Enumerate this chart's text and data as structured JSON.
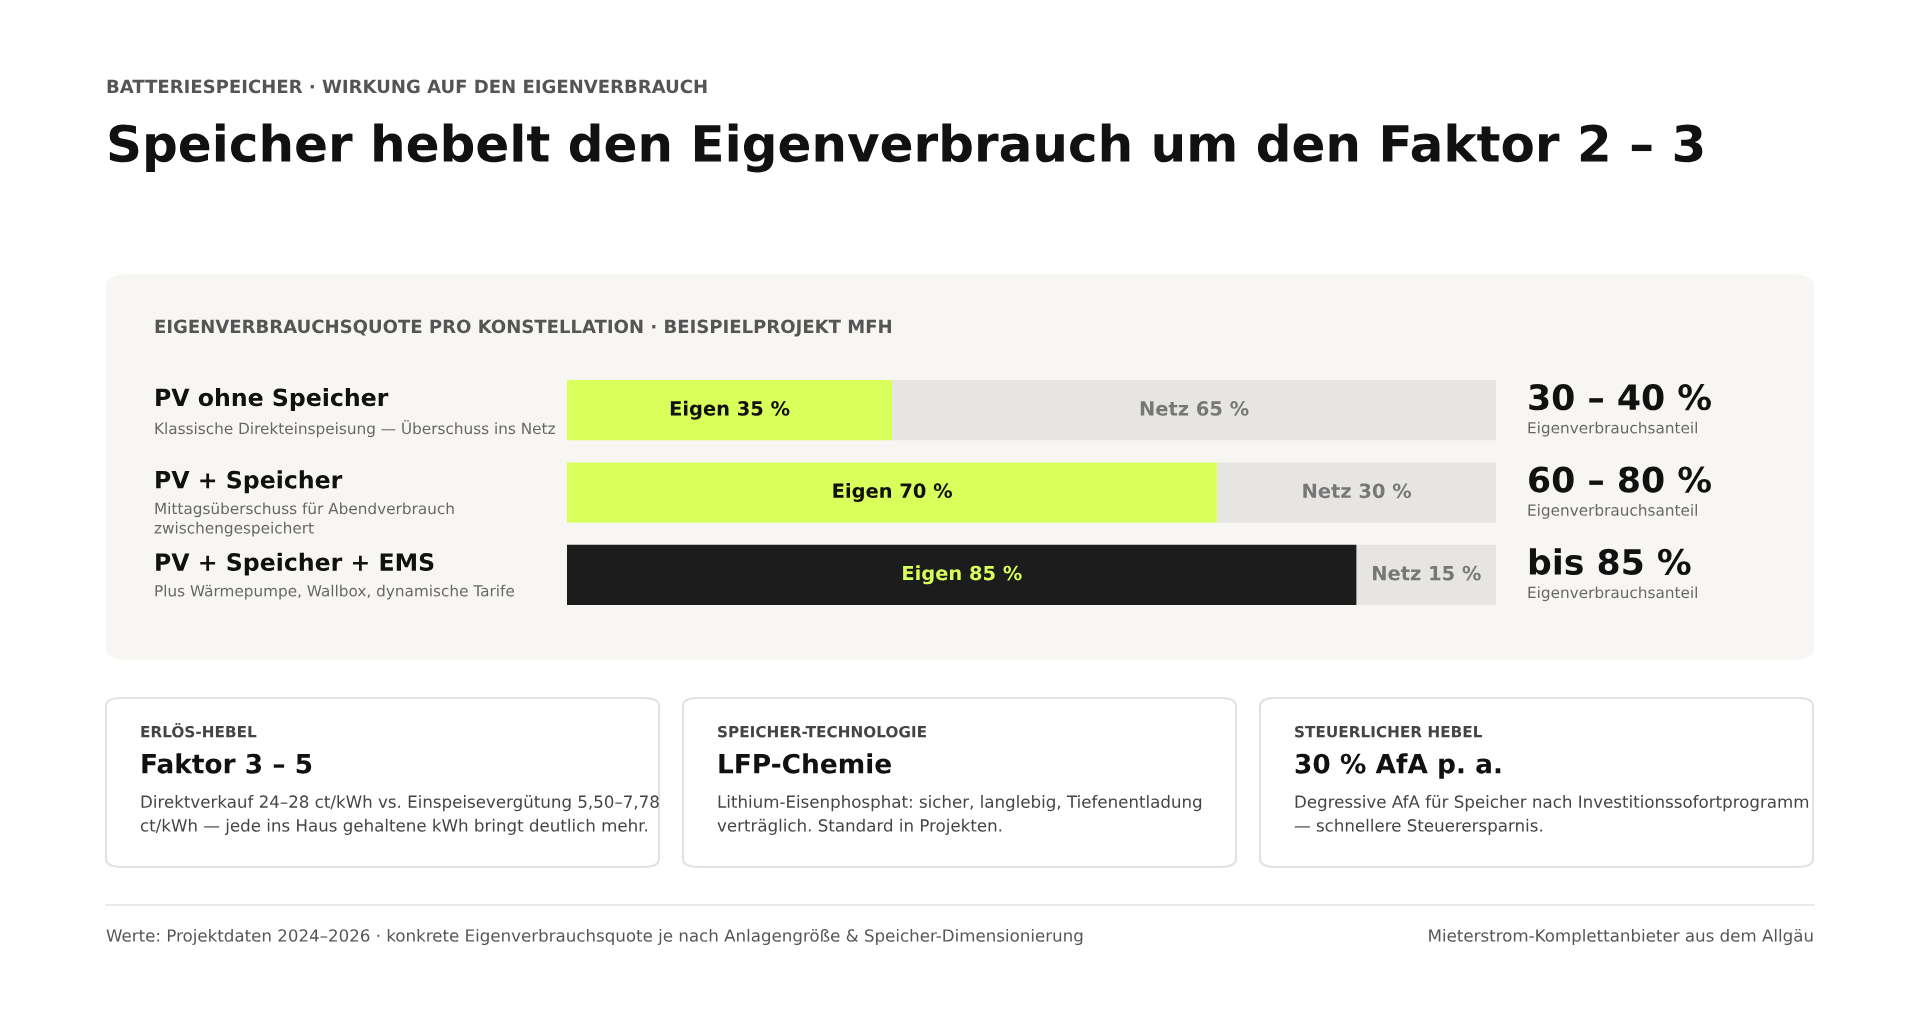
{
  "chart_data": {
    "type": "bar",
    "orientation": "horizontal",
    "stacked": true,
    "subtitle": "BATTERIESPEICHER · WIRKUNG AUF DEN EIGENVERBRAUCH",
    "title": "Speicher hebelt den Eigenverbrauch um den Faktor 2 – 3",
    "categories": [
      "PV ohne Speicher",
      "PV + Speicher",
      "PV + Speicher + EMS"
    ],
    "xlim": [
      0,
      100
    ],
    "series": [
      {
        "colors": [
          "#d9ff5a",
          "#d9ff5a",
          "#1c1c1c"
        ],
        "values": [
          35,
          70,
          85
        ],
        "value_labels": [
          "Eigen 35 %",
          "Eigen 70 %",
          "Eigen 85 %"
        ]
      },
      {
        "colors": [
          "#e6e5e2",
          "#e6e5e2",
          "#e6e5e2"
        ],
        "values": [
          65,
          30,
          15
        ],
        "value_labels": [
          "Netz 65 %",
          "Netz 30 %",
          "Netz 15 %"
        ]
      }
    ],
    "annotations": [
      "Klassische Direkteinspeisung — Überschuss ins Netz",
      "30 – 40 %",
      "Eigenverbrauchsanteil",
      "Mittagsüberschuss für Abendverbrauch\nzwischengespeichert",
      "60 – 80 %",
      "Eigenverbrauchsanteil",
      "Plus Wärmepumpe, Wallbox, dynamische Tarife",
      "bis 85 %",
      "Eigenverbrauchsanteil",
      "EIGENVERBRAUCHSQUOTE PRO KONSTELLATION · BEISPIELPROJEKT MFH",
      "ERLÖS-HEBEL",
      "Faktor 3 – 5",
      "Direktverkauf 24–28 ct/kWh vs. Einspeisevergütung 5,50–7,78\nct/kWh — jede ins Haus gehaltene kWh bringt deutlich mehr.",
      "SPEICHER-TECHNOLOGIE",
      "LFP-Chemie",
      "Lithium-Eisenphosphat: sicher, langlebig, Tiefenentladung\nverträglich. Standard in Projekten.",
      "STEUERLICHER HEBEL",
      "30 % AfA p. a.",
      "Degressive AfA für Speicher nach Investitionssofortprogramm\n— schnellere Steuerersparnis.",
      "Werte: Projektdaten 2024–2026 · konkrete Eigenverbrauchsquote je nach Anlagengröße & Speicher-Dimensionierung",
      "Mieterstrom-Komplettanbieter aus dem Allgäu"
    ]
  }
}
